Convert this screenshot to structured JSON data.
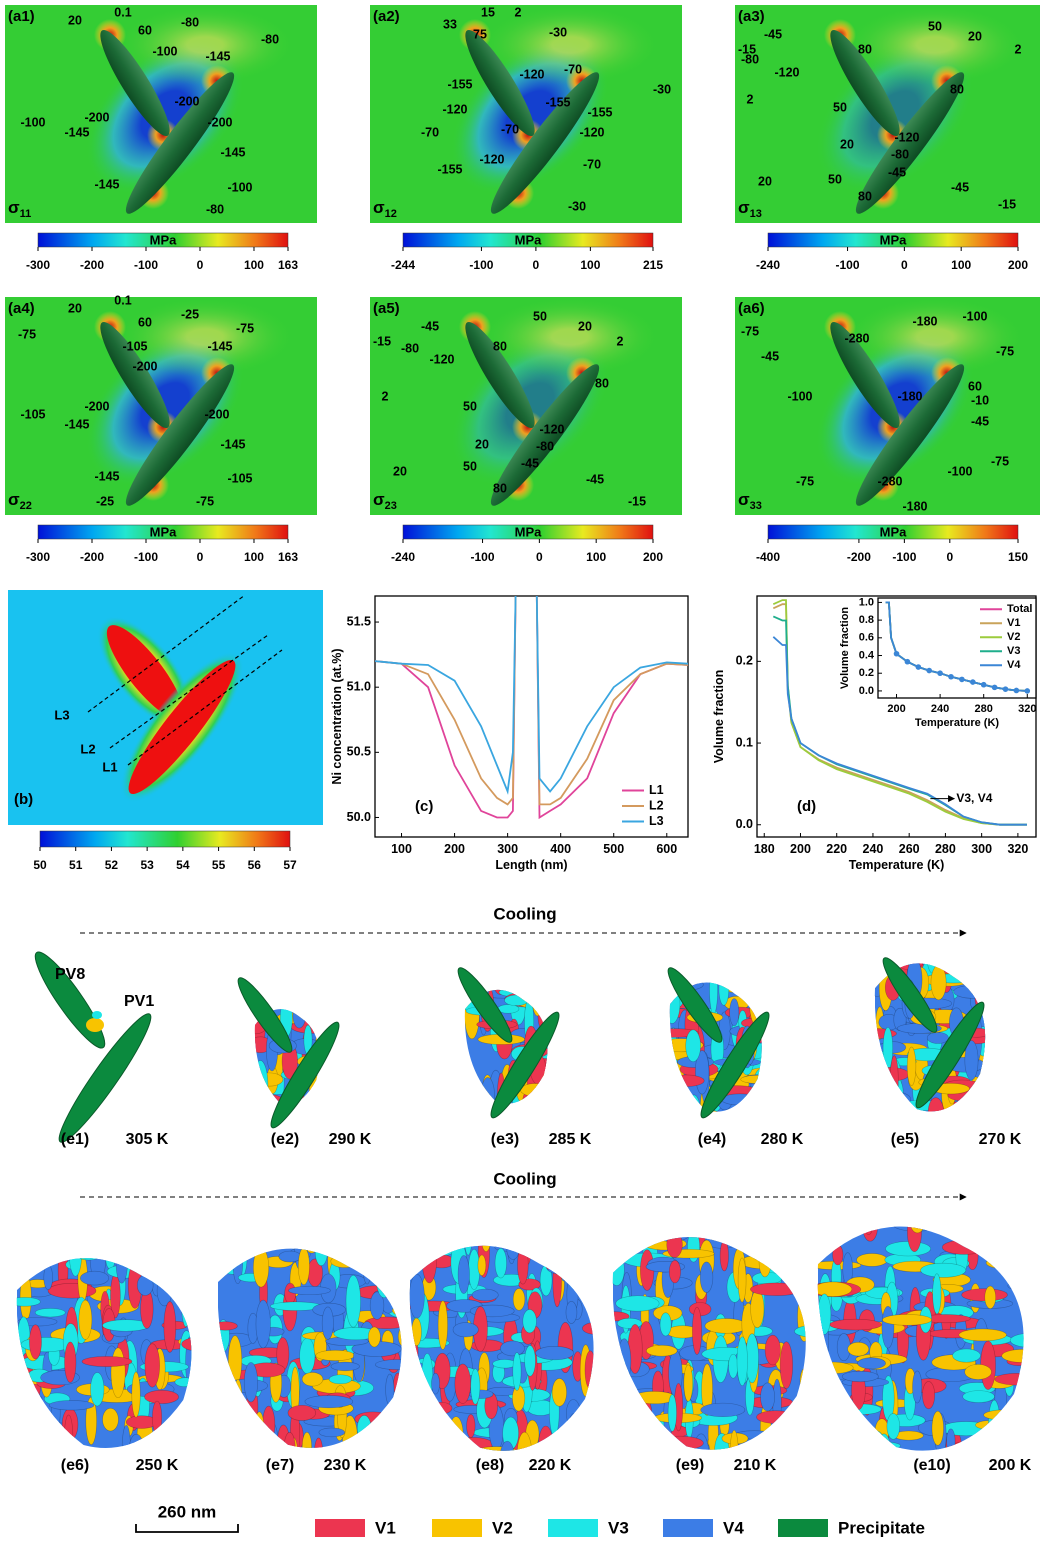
{
  "stress_maps": [
    {
      "label": "(a1)",
      "symbol": "σ",
      "index": "11",
      "unit": "MPa",
      "colorbar_lim": [
        -300,
        163
      ],
      "colorbar_ticks": [
        -300,
        -200,
        -100,
        0,
        100,
        163
      ],
      "contour_labels": [
        "20",
        "0.1",
        "60",
        "-80",
        "-100",
        "-145",
        "-80",
        "-200",
        "-200",
        "-145",
        "-100",
        "-200",
        "-145",
        "-145",
        "-100",
        "-80"
      ]
    },
    {
      "label": "(a2)",
      "symbol": "σ",
      "index": "12",
      "unit": "MPa",
      "colorbar_lim": [
        -244,
        215
      ],
      "colorbar_ticks": [
        -244,
        -100,
        0,
        100,
        215
      ],
      "contour_labels": [
        "33",
        "15",
        "2",
        "75",
        "-30",
        "-155",
        "-120",
        "-70",
        "-155",
        "-120",
        "-70",
        "-155",
        "-120",
        "-70",
        "-30",
        "-155",
        "-120",
        "-70",
        "-30"
      ]
    },
    {
      "label": "(a3)",
      "symbol": "σ",
      "index": "13",
      "unit": "MPa",
      "colorbar_lim": [
        -240,
        200
      ],
      "colorbar_ticks": [
        -240,
        -100,
        0,
        100,
        200
      ],
      "contour_labels": [
        "-15",
        "-45",
        "-80",
        "-120",
        "80",
        "50",
        "20",
        "2",
        "80",
        "2",
        "50",
        "-120",
        "20",
        "-80",
        "-45",
        "20",
        "50",
        "80",
        "-45",
        "-15"
      ]
    },
    {
      "label": "(a4)",
      "symbol": "σ",
      "index": "22",
      "unit": "MPa",
      "colorbar_lim": [
        -300,
        163
      ],
      "colorbar_ticks": [
        -300,
        -200,
        -100,
        0,
        100,
        163
      ],
      "contour_labels": [
        "20",
        "0.1",
        "60",
        "-25",
        "-75",
        "-105",
        "-200",
        "-145",
        "-75",
        "-200",
        "-145",
        "-105",
        "-200",
        "-145",
        "-145",
        "-105",
        "-25",
        "-75"
      ]
    },
    {
      "label": "(a5)",
      "symbol": "σ",
      "index": "23",
      "unit": "MPa",
      "colorbar_lim": [
        -240,
        200
      ],
      "colorbar_ticks": [
        -240,
        -100,
        0,
        100,
        200
      ],
      "contour_labels": [
        "-15",
        "-45",
        "-80",
        "-120",
        "80",
        "50",
        "20",
        "2",
        "80",
        "2",
        "50",
        "-120",
        "20",
        "-80",
        "-45",
        "20",
        "50",
        "80",
        "-45",
        "-15"
      ]
    },
    {
      "label": "(a6)",
      "symbol": "σ",
      "index": "33",
      "unit": "MPa",
      "colorbar_lim": [
        -400,
        150
      ],
      "colorbar_ticks": [
        -400,
        -200,
        -100,
        0,
        150
      ],
      "contour_labels": [
        "-75",
        "-45",
        "-280",
        "-180",
        "-100",
        "-75",
        "-180",
        "60",
        "-10",
        "-45",
        "-100",
        "-75",
        "-75",
        "-280",
        "-180",
        "-100"
      ]
    }
  ],
  "concentration_map": {
    "label": "(b)",
    "line_labels": [
      "L1",
      "L2",
      "L3"
    ],
    "colorbar_lim": [
      50,
      57
    ],
    "colorbar_ticks": [
      50,
      51,
      52,
      53,
      54,
      55,
      56,
      57
    ]
  },
  "chart_data": [
    {
      "type": "line",
      "label": "(c)",
      "x_label": "Length (nm)",
      "y_label": "Ni concentration (at.%)",
      "x": [
        50,
        100,
        150,
        200,
        250,
        280,
        300,
        310,
        315,
        335,
        355,
        360,
        380,
        400,
        450,
        500,
        550,
        600,
        640
      ],
      "series": [
        {
          "name": "L1",
          "color": "#e0449a",
          "values": [
            51.2,
            51.18,
            51.0,
            50.4,
            50.05,
            50.0,
            50.0,
            50.05,
            51.7,
            null,
            51.7,
            50.0,
            50.05,
            50.1,
            50.3,
            50.8,
            51.1,
            51.18,
            51.17
          ]
        },
        {
          "name": "L2",
          "color": "#d49a5e",
          "values": [
            51.2,
            51.18,
            51.1,
            50.75,
            50.3,
            50.15,
            50.1,
            50.15,
            51.7,
            null,
            51.7,
            50.1,
            50.1,
            50.15,
            50.45,
            50.9,
            51.1,
            51.18,
            51.17
          ]
        },
        {
          "name": "L3",
          "color": "#3aa6e0",
          "values": [
            51.2,
            51.18,
            51.17,
            51.05,
            50.7,
            50.4,
            50.2,
            50.5,
            51.7,
            null,
            51.7,
            50.3,
            50.2,
            50.3,
            50.7,
            51.0,
            51.15,
            51.19,
            51.18
          ]
        }
      ],
      "xlim": [
        50,
        640
      ],
      "xticks": [
        100,
        200,
        300,
        400,
        500,
        600
      ],
      "ylim": [
        49.85,
        51.7
      ],
      "yticks": [
        {
          "value": 50,
          "label": "50.0"
        },
        50.5,
        {
          "value": 51,
          "label": "51.0"
        },
        51.5
      ],
      "legend": "lower right"
    },
    {
      "type": "line",
      "label": "(d)",
      "x_label": "Temperature (K)",
      "y_label": "Volume fraction",
      "x": [
        185,
        190,
        192,
        193,
        195,
        200,
        210,
        220,
        240,
        260,
        270,
        280,
        290,
        300,
        310,
        320,
        325
      ],
      "series": [
        {
          "color": "#c9a35a",
          "values": [
            0.265,
            0.27,
            0.27,
            0.165,
            0.125,
            0.095,
            0.08,
            0.07,
            0.055,
            0.04,
            0.03,
            0.018,
            0.008,
            0.002,
            0,
            0,
            0
          ]
        },
        {
          "color": "#9ccc3c",
          "values": [
            0.27,
            0.275,
            0.275,
            0.17,
            0.125,
            0.095,
            0.079,
            0.068,
            0.053,
            0.038,
            0.028,
            0.016,
            0.007,
            0.002,
            0,
            0,
            0
          ]
        },
        {
          "color": "#1fae8c",
          "values": [
            0.255,
            0.25,
            0.25,
            0.17,
            0.13,
            0.1,
            0.085,
            0.074,
            0.059,
            0.044,
            0.037,
            0.024,
            0.01,
            0.003,
            0,
            0,
            0
          ]
        },
        {
          "color": "#3b86d6",
          "values": [
            0.23,
            0.22,
            0.22,
            0.16,
            0.13,
            0.1,
            0.085,
            0.075,
            0.06,
            0.045,
            0.038,
            0.025,
            0.01,
            0.003,
            0,
            0,
            0
          ]
        }
      ],
      "xlim": [
        176,
        330
      ],
      "xticks": [
        180,
        200,
        220,
        240,
        260,
        280,
        300,
        320
      ],
      "ylim": [
        -0.015,
        0.28
      ],
      "yticks": [
        {
          "value": 0,
          "label": "0.0"
        },
        0.1,
        0.2
      ],
      "annotations": [
        {
          "text": "V3, V4",
          "x": 275,
          "y": 0.032
        }
      ],
      "inset": {
        "type": "line",
        "x_label": "Temperature (K)",
        "y_label": "Volume fraction",
        "x": [
          190,
          193,
          195,
          200,
          210,
          220,
          230,
          240,
          250,
          260,
          270,
          280,
          290,
          300,
          310,
          320
        ],
        "series": [
          {
            "name": "Total",
            "color": "#e0449a",
            "values": [
              1.0,
              1.0,
              0.6,
              0.42,
              0.33,
              0.27,
              0.23,
              0.2,
              0.16,
              0.13,
              0.1,
              0.07,
              0.04,
              0.02,
              0.005,
              0
            ]
          },
          {
            "name": "V1",
            "color": "#c9a35a",
            "values": [
              1.0,
              1.0,
              0.6,
              0.42,
              0.33,
              0.27,
              0.23,
              0.2,
              0.16,
              0.13,
              0.1,
              0.07,
              0.04,
              0.02,
              0.005,
              0
            ]
          },
          {
            "name": "V2",
            "color": "#9ccc3c",
            "values": [
              1.0,
              1.0,
              0.6,
              0.42,
              0.33,
              0.27,
              0.23,
              0.2,
              0.16,
              0.13,
              0.1,
              0.07,
              0.04,
              0.02,
              0.005,
              0
            ]
          },
          {
            "name": "V3",
            "color": "#1fae8c",
            "values": [
              1.0,
              1.0,
              0.6,
              0.42,
              0.33,
              0.27,
              0.23,
              0.2,
              0.16,
              0.13,
              0.1,
              0.07,
              0.04,
              0.02,
              0.005,
              0
            ]
          },
          {
            "name": "V4",
            "color": "#3b86d6",
            "marker": "circle",
            "values": [
              1.0,
              1.0,
              0.6,
              0.42,
              0.33,
              0.27,
              0.23,
              0.2,
              0.16,
              0.13,
              0.1,
              0.07,
              0.04,
              0.02,
              0.005,
              0
            ]
          }
        ],
        "xlim": [
          183,
          328
        ],
        "xticks": [
          200,
          240,
          280,
          320
        ],
        "ylim": [
          -0.08,
          1.05
        ],
        "yticks": [
          {
            "value": 0,
            "label": "0.0"
          },
          0.2,
          0.4,
          0.6,
          0.8,
          {
            "value": 1,
            "label": "1.0"
          }
        ],
        "legend": "upper right"
      }
    }
  ],
  "cooling_labels": [
    "Cooling",
    "Cooling"
  ],
  "variant_labels": [
    "PV8",
    "PV1"
  ],
  "snapshots": [
    {
      "label": "(e1)",
      "temperature": "305 K"
    },
    {
      "label": "(e2)",
      "temperature": "290 K"
    },
    {
      "label": "(e3)",
      "temperature": "285 K"
    },
    {
      "label": "(e4)",
      "temperature": "280 K"
    },
    {
      "label": "(e5)",
      "temperature": "270 K"
    },
    {
      "label": "(e6)",
      "temperature": "250 K"
    },
    {
      "label": "(e7)",
      "temperature": "230 K"
    },
    {
      "label": "(e8)",
      "temperature": "220 K"
    },
    {
      "label": "(e9)",
      "temperature": "210 K"
    },
    {
      "label": "(e10)",
      "temperature": "200 K"
    }
  ],
  "scale_bar": "260 nm",
  "legend": [
    {
      "name": "V1",
      "color": "#ec3550"
    },
    {
      "name": "V2",
      "color": "#f8c300"
    },
    {
      "name": "V3",
      "color": "#1ee6e6"
    },
    {
      "name": "V4",
      "color": "#3c7de6"
    },
    {
      "name": "Precipitate",
      "color": "#0b8a3e"
    }
  ]
}
